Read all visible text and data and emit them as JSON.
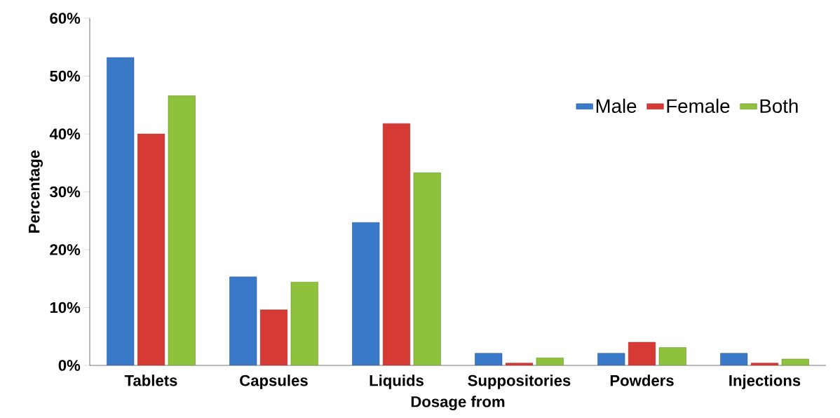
{
  "chart_data": {
    "type": "bar",
    "xlabel": "Dosage from",
    "ylabel": "Percentage",
    "categories": [
      "Tablets",
      "Capsules",
      "Liquids",
      "Suppositories",
      "Powders",
      "Injections"
    ],
    "series": [
      {
        "name": "Male",
        "color": "#3a78c8",
        "values": [
          53.2,
          15.3,
          24.7,
          2.1,
          2.1,
          2.1
        ]
      },
      {
        "name": "Female",
        "color": "#d63a35",
        "values": [
          40,
          9.6,
          41.8,
          0.4,
          4,
          0.4
        ]
      },
      {
        "name": "Both",
        "color": "#8fc23c",
        "values": [
          46.6,
          14.4,
          33.3,
          1.3,
          3.1,
          1.1
        ]
      }
    ],
    "ylim": [
      0,
      60
    ],
    "yticks": [
      {
        "value": 0,
        "label": "0%"
      },
      {
        "value": 10,
        "label": "10%"
      },
      {
        "value": 20,
        "label": "20%"
      },
      {
        "value": 30,
        "label": "30%"
      },
      {
        "value": 40,
        "label": "40%"
      },
      {
        "value": 50,
        "label": "50%"
      },
      {
        "value": 60,
        "label": "60%"
      }
    ],
    "grid": false,
    "legend": "top right"
  }
}
